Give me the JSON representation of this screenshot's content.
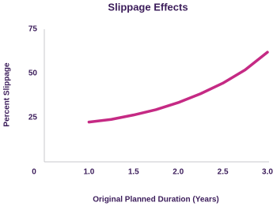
{
  "chart_data": {
    "type": "line",
    "title": "Slippage Effects",
    "x_label": "Original Planned Duration (Years)",
    "y_label": "Percent Slippage",
    "x": [
      1.0,
      1.25,
      1.5,
      1.75,
      2.0,
      2.25,
      2.5,
      2.75,
      3.0
    ],
    "series": [
      {
        "name": "Slippage",
        "color": "#c52a84",
        "values": [
          22.5,
          24,
          26.5,
          29.5,
          33.5,
          38.5,
          44.5,
          52,
          62
        ]
      }
    ],
    "xlim": [
      0.5,
      3.0
    ],
    "xticks": [
      {
        "value": 1.0,
        "label": "1.0"
      },
      {
        "value": 1.5,
        "label": "1.5"
      },
      {
        "value": 2.0,
        "label": "2.0"
      },
      {
        "value": 2.5,
        "label": "2.5"
      },
      {
        "value": 3.0,
        "label": "3.0"
      }
    ],
    "ylim": [
      0,
      75
    ],
    "yticks": [
      0,
      25,
      50,
      75
    ],
    "grid": false
  }
}
